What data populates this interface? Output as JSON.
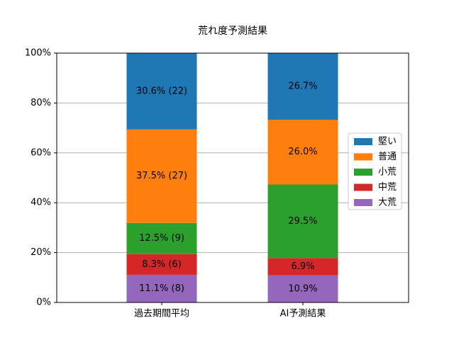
{
  "chart_data": {
    "type": "stacked-bar",
    "title": "荒れ度予測結果",
    "categories": [
      "過去期間平均",
      "AI予測結果"
    ],
    "series": [
      {
        "name": "堅い",
        "color": "#1f77b4",
        "values": [
          30.6,
          26.7
        ],
        "value_labels": [
          "30.6% (22)",
          "26.7%"
        ]
      },
      {
        "name": "普通",
        "color": "#ff7f0e",
        "values": [
          37.5,
          26.0
        ],
        "value_labels": [
          "37.5% (27)",
          "26.0%"
        ]
      },
      {
        "name": "小荒",
        "color": "#2ca02c",
        "values": [
          12.5,
          29.5
        ],
        "value_labels": [
          "12.5% (9)",
          "29.5%"
        ]
      },
      {
        "name": "中荒",
        "color": "#d62728",
        "values": [
          8.3,
          6.9
        ],
        "value_labels": [
          "8.3% (6)",
          "6.9%"
        ]
      },
      {
        "name": "大荒",
        "color": "#9467bd",
        "values": [
          11.1,
          10.9
        ],
        "value_labels": [
          "11.1% (8)",
          "10.9%"
        ]
      }
    ],
    "ylim": [
      0,
      100
    ],
    "yticks": [
      {
        "value": 0,
        "label": "0%"
      },
      {
        "value": 20,
        "label": "20%"
      },
      {
        "value": 40,
        "label": "40%"
      },
      {
        "value": 60,
        "label": "60%"
      },
      {
        "value": 80,
        "label": "80%"
      },
      {
        "value": 100,
        "label": "100%"
      }
    ],
    "grid": true,
    "legend": "right"
  }
}
